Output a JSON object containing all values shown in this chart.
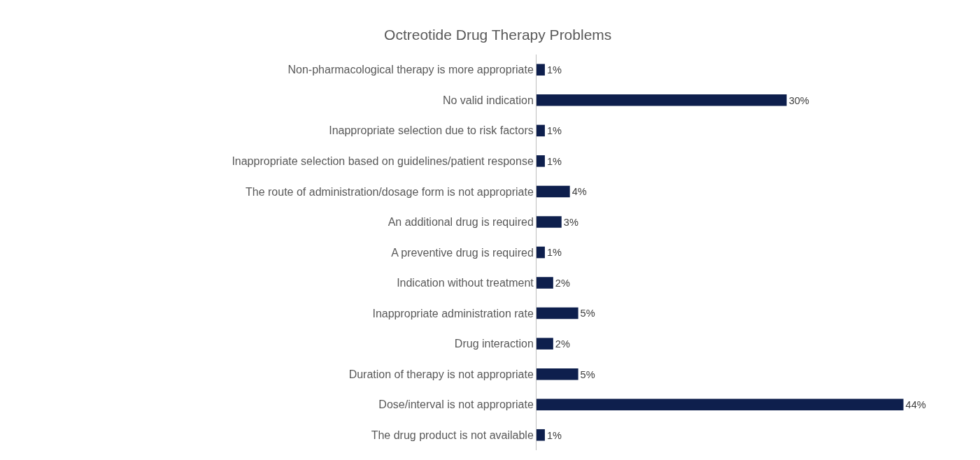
{
  "chart_data": {
    "type": "bar",
    "orientation": "horizontal",
    "title": "Octreotide Drug Therapy Problems",
    "categories": [
      "Non-pharmacological therapy is more appropriate",
      "No valid indication",
      "Inappropriate selection due to risk factors",
      "Inappropriate selection based on guidelines/patient response",
      "The route of administration/dosage form is not appropriate",
      "An additional drug is required",
      "A preventive drug is required",
      "Indication without treatment",
      "Inappropriate administration rate",
      "Drug interaction",
      "Duration of therapy is not appropriate",
      "Dose/interval is not appropriate",
      "The drug product is not available"
    ],
    "values": [
      1,
      30,
      1,
      1,
      4,
      3,
      1,
      2,
      5,
      2,
      5,
      44,
      1
    ],
    "value_labels": [
      "1%",
      "30%",
      "1%",
      "1%",
      "4%",
      "3%",
      "1%",
      "2%",
      "5%",
      "2%",
      "5%",
      "44%",
      "1%"
    ],
    "color": "#0e1f4d",
    "legend": false
  }
}
